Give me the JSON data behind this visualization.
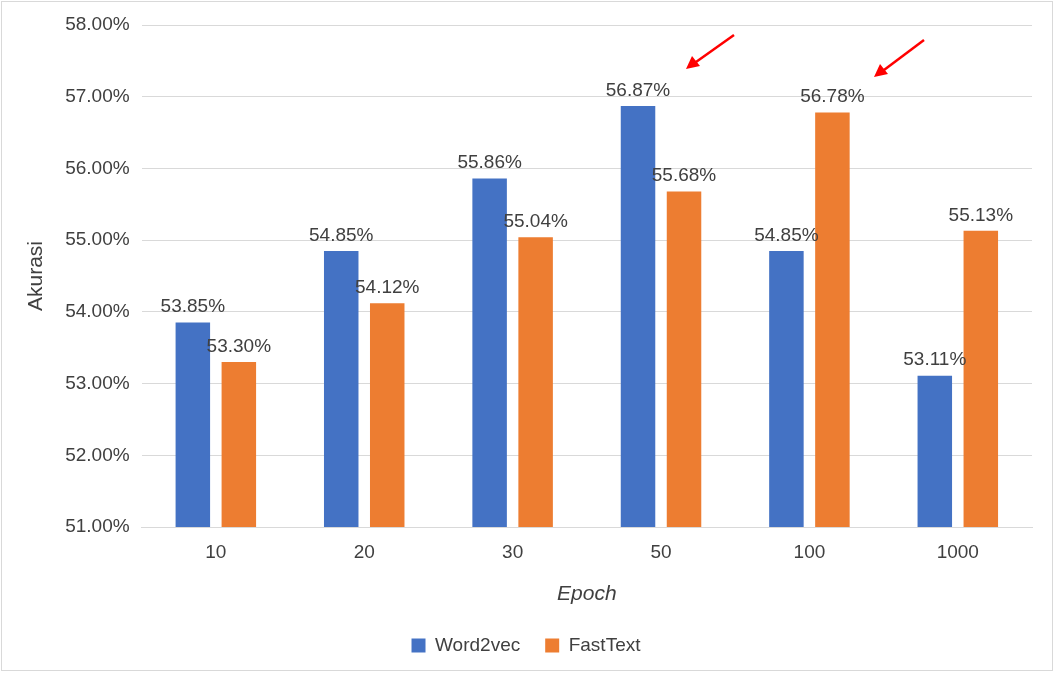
{
  "chart_data": {
    "type": "bar",
    "xlabel": "Epoch",
    "ylabel": "Akurasi",
    "categories": [
      "10",
      "20",
      "30",
      "50",
      "100",
      "1000"
    ],
    "series": [
      {
        "name": "Word2vec",
        "color": "#4472c4",
        "values": [
          53.85,
          54.85,
          55.86,
          56.87,
          54.85,
          53.11
        ],
        "value_labels": [
          "53.85%",
          "54.85%",
          "55.86%",
          "56.87%",
          "54.85%",
          "53.11%"
        ]
      },
      {
        "name": "FastText",
        "color": "#ed7d31",
        "values": [
          53.3,
          54.12,
          55.04,
          55.68,
          56.78,
          55.13
        ],
        "value_labels": [
          "53.30%",
          "54.12%",
          "55.04%",
          "55.68%",
          "56.78%",
          "55.13%"
        ]
      }
    ],
    "ylim": [
      51,
      58
    ],
    "yticks": [
      {
        "value": 51,
        "label": "51.00%"
      },
      {
        "value": 52,
        "label": "52.00%"
      },
      {
        "value": 53,
        "label": "53.00%"
      },
      {
        "value": 54,
        "label": "54.00%"
      },
      {
        "value": 55,
        "label": "55.00%"
      },
      {
        "value": 56,
        "label": "56.00%"
      },
      {
        "value": 57,
        "label": "57.00%"
      },
      {
        "value": 58,
        "label": "58.00%"
      }
    ],
    "grid": "y",
    "legend": "bottom"
  }
}
